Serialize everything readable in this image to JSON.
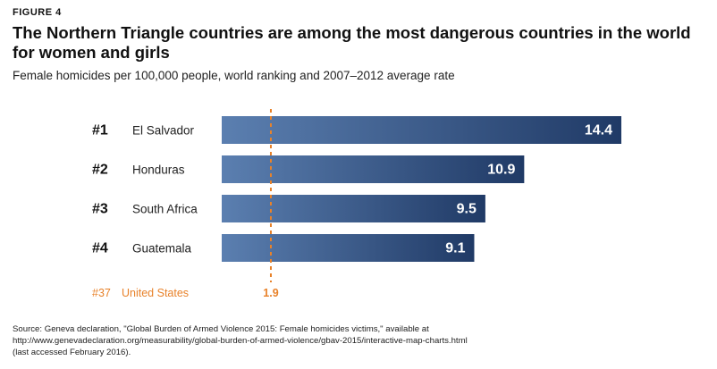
{
  "figure_label": "FIGURE 4",
  "title": "The Northern Triangle countries are among the most dangerous countries in the world for women and girls",
  "subtitle": "Female homicides per 100,000 people, world ranking and 2007–2012 average rate",
  "colors": {
    "bar_gradient_left": "#5b7fb0",
    "bar_gradient_right": "#203a66",
    "highlight": "#e8822a",
    "text": "#111111"
  },
  "chart_data": {
    "type": "bar",
    "orientation": "horizontal",
    "categories": [
      "El Salvador",
      "Honduras",
      "South Africa",
      "Guatemala"
    ],
    "ranks": [
      "#1",
      "#2",
      "#3",
      "#4"
    ],
    "values": [
      14.4,
      10.9,
      9.5,
      9.1
    ],
    "value_labels": [
      "14.4",
      "10.9",
      "9.5",
      "9.1"
    ],
    "xlim": [
      0,
      14.4
    ],
    "grid": false,
    "reference": {
      "rank": "#37",
      "category": "United States",
      "value": 1.9,
      "value_label": "1.9",
      "style": "dotted vertical line"
    }
  },
  "source": {
    "lines": [
      "Source: Geneva declaration, \"Global Burden of Armed Violence 2015: Female homicides victims,\" available at",
      "http://www.genevadeclaration.org/measurability/global-burden-of-armed-violence/gbav-2015/interactive-map-charts.html",
      "(last accessed February 2016)."
    ]
  }
}
